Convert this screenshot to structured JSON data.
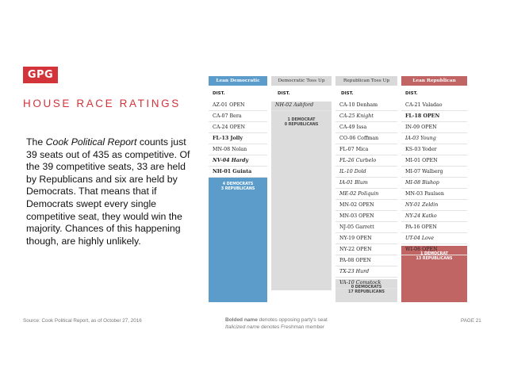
{
  "brand": {
    "logo_text": "GPG",
    "accent_color": "#d2343a"
  },
  "slide": {
    "title": "HOUSE RACE RATINGS",
    "body": {
      "pre": "The ",
      "italic": "Cook Political Report",
      "post": " counts just 39 seats out of 435 as competitive. Of the 39 competitive seats, 33 are held by Republicans and six are held by Democrats. That means that if Democrats swept every single competitive seat, they would win the majority. Chances of this happening though, are highly unlikely."
    }
  },
  "table": {
    "colors": {
      "lean_dem": "#5b9ccb",
      "toss_up": "#d9d9d9",
      "lean_rep": "#c06464"
    },
    "columns": [
      {
        "header": "Lean Democratic",
        "dist_label": "DIST.",
        "rows": [
          {
            "text": "AZ-01 OPEN",
            "style": "normal"
          },
          {
            "text": "CA-07 Bera",
            "style": "normal"
          },
          {
            "text": "CA-24 OPEN",
            "style": "normal"
          },
          {
            "text": "FL-13 Jolly",
            "style": "bold"
          },
          {
            "text": "MN-08 Nolan",
            "style": "normal"
          },
          {
            "text": "NV-04 Hardy",
            "style": "bolditalic"
          },
          {
            "text": "NH-01 Guinta",
            "style": "bold"
          }
        ],
        "summary": [
          "4 DEMOCRATS",
          "3 REPUBLICANS"
        ]
      },
      {
        "header": "Democratic Toss Up",
        "dist_label": "DIST.",
        "rows": [
          {
            "text": "NH-02 Ashford",
            "style": "italic"
          }
        ],
        "summary": [
          "1 DEMOCRAT",
          "0 REPUBLICANS"
        ]
      },
      {
        "header": "Republican Toss Up",
        "dist_label": "DIST.",
        "rows": [
          {
            "text": "CA-10 Denham",
            "style": "normal"
          },
          {
            "text": "CA-25 Knight",
            "style": "italic"
          },
          {
            "text": "CA-49 Issa",
            "style": "normal"
          },
          {
            "text": "CO-06 Coffman",
            "style": "normal"
          },
          {
            "text": "FL-07 Mica",
            "style": "normal"
          },
          {
            "text": "FL-26 Curbelo",
            "style": "italic"
          },
          {
            "text": "IL-10 Dold",
            "style": "italic"
          },
          {
            "text": "IA-01 Blum",
            "style": "italic"
          },
          {
            "text": "ME-02 Poliquin",
            "style": "italic"
          },
          {
            "text": "MN-02 OPEN",
            "style": "normal"
          },
          {
            "text": "MN-03 OPEN",
            "style": "normal"
          },
          {
            "text": "NJ-05 Garrett",
            "style": "normal"
          },
          {
            "text": "NY-19 OPEN",
            "style": "normal"
          },
          {
            "text": "NY-22 OPEN",
            "style": "normal"
          },
          {
            "text": "PA-08 OPEN",
            "style": "normal"
          },
          {
            "text": "TX-23 Hurd",
            "style": "italic"
          },
          {
            "text": "VA-10 Comstock",
            "style": "italic"
          }
        ],
        "summary": [
          "0 DEMOCRATS",
          "17 REPUBLICANS"
        ]
      },
      {
        "header": "Lean Republican",
        "dist_label": "DIST.",
        "rows": [
          {
            "text": "CA-21 Valadao",
            "style": "normal"
          },
          {
            "text": "FL-18 OPEN",
            "style": "bold"
          },
          {
            "text": "IN-09 OPEN",
            "style": "normal"
          },
          {
            "text": "IA-03 Young",
            "style": "italic"
          },
          {
            "text": "KS-03 Yoder",
            "style": "normal"
          },
          {
            "text": "MI-01 OPEN",
            "style": "normal"
          },
          {
            "text": "MI-07 Walberg",
            "style": "normal"
          },
          {
            "text": "MI-08 Bishop",
            "style": "italic"
          },
          {
            "text": "MN-03 Paulsen",
            "style": "normal"
          },
          {
            "text": "NY-01 Zeldin",
            "style": "italic"
          },
          {
            "text": "NY-24 Katko",
            "style": "italic"
          },
          {
            "text": "PA-16 OPEN",
            "style": "normal"
          },
          {
            "text": "UT-04 Love",
            "style": "italic"
          },
          {
            "text": "WI-08 OPEN",
            "style": "normal"
          }
        ],
        "summary": [
          "1 DEMOCRAT",
          "13 REPUBLICANS"
        ]
      }
    ]
  },
  "footer": {
    "source": "Source:  Cook Political Report, as of October 27, 2016",
    "bold_label": "Bolded name",
    "bold_desc": " denotes opposing party's seat",
    "italic_label": "Italicized name",
    "italic_desc": " denotes Freshman member",
    "page": "PAGE 21"
  }
}
